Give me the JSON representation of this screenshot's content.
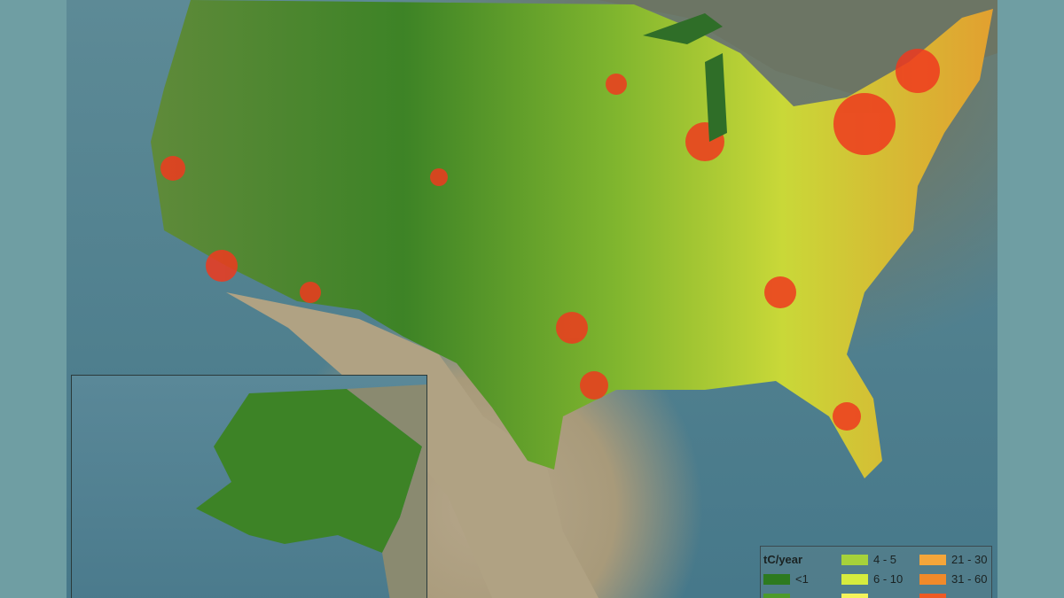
{
  "legend": {
    "title": "tC/year",
    "entries": [
      {
        "label": "<1",
        "color": "#2d7a1f"
      },
      {
        "label": "4 - 5",
        "color": "#a6d23a"
      },
      {
        "label": "6 - 10",
        "color": "#d6ec3e"
      },
      {
        "label": "21 - 30",
        "color": "#f5a63a"
      },
      {
        "label": "31 - 60",
        "color": "#f08a2a"
      }
    ],
    "partial_colors": [
      "#4c9a2a",
      "#f4f45a",
      "#ee5a24"
    ]
  },
  "colors": {
    "low": "#2d7a1f",
    "mid": "#d6ec3e",
    "high": "#ee3a1e",
    "ocean": "#4f7f8e"
  }
}
